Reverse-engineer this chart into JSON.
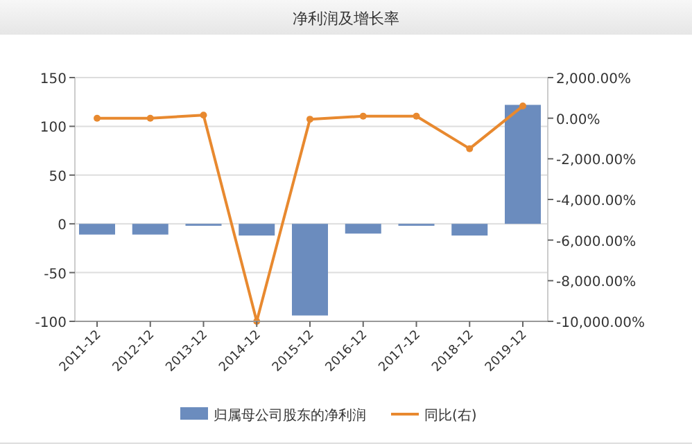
{
  "chart_data": {
    "type": "bar",
    "title": "净利润及增长率",
    "categories": [
      "2011-12",
      "2012-12",
      "2013-12",
      "2014-12",
      "2015-12",
      "2016-12",
      "2017-12",
      "2018-12",
      "2019-12"
    ],
    "series": [
      {
        "name": "归属母公司股东的净利润",
        "color": "#6b8cbe",
        "values": [
          -11,
          -11,
          -2,
          -12,
          -94,
          -10,
          -2,
          -12,
          122
        ]
      },
      {
        "name": "同比(右)",
        "type": "line",
        "axis": "y2",
        "color": "#e8892f",
        "marker": "circle",
        "values": [
          0,
          0,
          150,
          -10000,
          -50,
          100,
          100,
          -1500,
          600
        ]
      }
    ],
    "ylim": [
      -100,
      150
    ],
    "yticks": [
      -100,
      -50,
      0,
      50,
      100,
      150
    ],
    "y2lim": [
      -10000,
      2000
    ],
    "y2ticks": [
      {
        "value": -10000,
        "label": "-10,000.00%"
      },
      {
        "value": -8000,
        "label": "-8,000.00%"
      },
      {
        "value": -6000,
        "label": "-6,000.00%"
      },
      {
        "value": -4000,
        "label": "-4,000.00%"
      },
      {
        "value": -2000,
        "label": "-2,000.00%"
      },
      {
        "value": 0,
        "label": "0.00%"
      },
      {
        "value": 2000,
        "label": "2,000.00%"
      }
    ],
    "grid": "y",
    "legend": "bottom"
  }
}
